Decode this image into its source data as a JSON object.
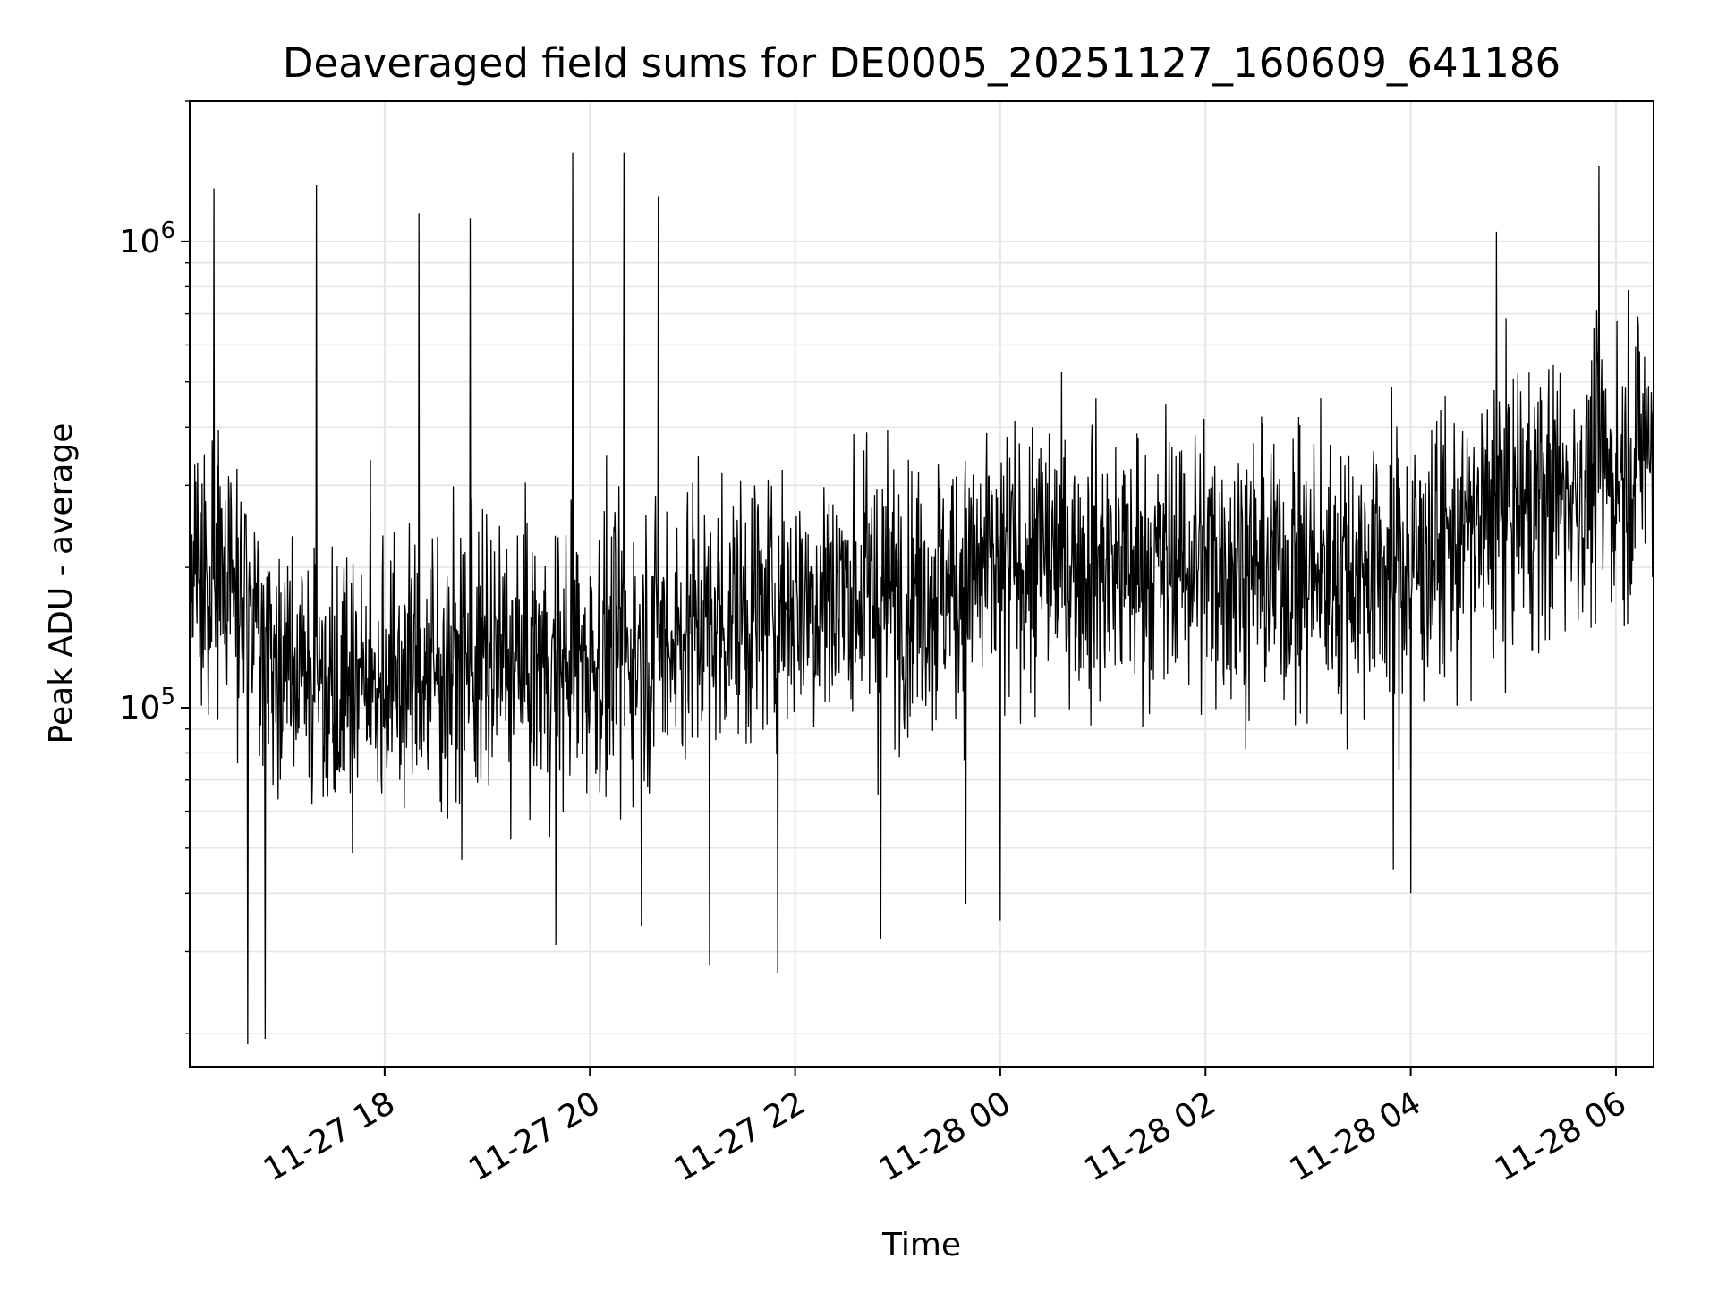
{
  "chart_data": {
    "type": "line",
    "title": "Deaveraged field sums for DE0005_20251127_160609_641186",
    "xlabel": "Time",
    "ylabel": "Peak ADU - average",
    "x_range": [
      "2025-11-27 16:06",
      "2025-11-28 06:22"
    ],
    "y_scale": "log",
    "ylim": [
      17000,
      2000000
    ],
    "grid": true,
    "x_tick_labels": [
      "11-27 18",
      "11-27 20",
      "11-27 22",
      "11-28 00",
      "11-28 02",
      "11-28 04",
      "11-28 06"
    ],
    "x_ticks": [
      "2025-11-27 18:00",
      "2025-11-27 20:00",
      "2025-11-27 22:00",
      "2025-11-28 00:00",
      "2025-11-28 02:00",
      "2025-11-28 04:00",
      "2025-11-28 06:00"
    ],
    "y_ticks": [
      {
        "value": 100000,
        "base": "10",
        "exp": "5"
      },
      {
        "value": 1000000,
        "base": "10",
        "exp": "6"
      }
    ],
    "series": [
      {
        "color": "#000000",
        "points": [
          [
            "2025-11-27 16:06",
            220000
          ],
          [
            "2025-11-27 16:30",
            180000
          ],
          [
            "2025-11-27 17:00",
            130000
          ],
          [
            "2025-11-27 17:30",
            115000
          ],
          [
            "2025-11-27 18:00",
            118000
          ],
          [
            "2025-11-27 18:30",
            120000
          ],
          [
            "2025-11-27 19:00",
            125000
          ],
          [
            "2025-11-27 19:30",
            122000
          ],
          [
            "2025-11-27 20:00",
            128000
          ],
          [
            "2025-11-27 20:30",
            135000
          ],
          [
            "2025-11-27 21:00",
            150000
          ],
          [
            "2025-11-27 21:30",
            160000
          ],
          [
            "2025-11-27 22:00",
            170000
          ],
          [
            "2025-11-27 22:30",
            180000
          ],
          [
            "2025-11-27 23:00",
            175000
          ],
          [
            "2025-11-27 23:30",
            185000
          ],
          [
            "2025-11-28 00:00",
            200000
          ],
          [
            "2025-11-28 00:30",
            210000
          ],
          [
            "2025-11-28 01:00",
            205000
          ],
          [
            "2025-11-28 01:30",
            200000
          ],
          [
            "2025-11-28 02:00",
            210000
          ],
          [
            "2025-11-28 02:30",
            200000
          ],
          [
            "2025-11-28 03:00",
            195000
          ],
          [
            "2025-11-28 03:30",
            200000
          ],
          [
            "2025-11-28 04:00",
            205000
          ],
          [
            "2025-11-28 04:30",
            230000
          ],
          [
            "2025-11-28 05:00",
            270000
          ],
          [
            "2025-11-28 05:30",
            290000
          ],
          [
            "2025-11-28 06:00",
            320000
          ],
          [
            "2025-11-28 06:22",
            380000
          ]
        ],
        "spikes": [
          [
            "2025-11-27 16:20",
            1300000
          ],
          [
            "2025-11-27 17:20",
            1320000
          ],
          [
            "2025-11-27 18:20",
            1150000
          ],
          [
            "2025-11-27 18:50",
            1120000
          ],
          [
            "2025-11-27 19:50",
            1550000
          ],
          [
            "2025-11-27 20:20",
            1550000
          ],
          [
            "2025-11-27 20:40",
            1250000
          ],
          [
            "2025-11-28 04:50",
            1050000
          ],
          [
            "2025-11-28 05:50",
            1450000
          ],
          [
            "2025-11-27 16:40",
            19000
          ],
          [
            "2025-11-27 16:50",
            19500
          ],
          [
            "2025-11-27 19:40",
            31000
          ],
          [
            "2025-11-27 20:30",
            34000
          ],
          [
            "2025-11-27 21:10",
            28000
          ],
          [
            "2025-11-27 21:50",
            27000
          ],
          [
            "2025-11-27 22:50",
            32000
          ],
          [
            "2025-11-27 23:40",
            38000
          ],
          [
            "2025-11-28 00:00",
            35000
          ],
          [
            "2025-11-28 03:50",
            45000
          ],
          [
            "2025-11-28 04:00",
            40000
          ]
        ]
      }
    ]
  }
}
